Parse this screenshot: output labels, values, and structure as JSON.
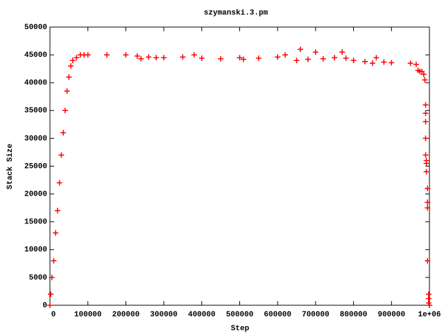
{
  "chart_data": {
    "type": "scatter",
    "title": "szymanski.3.pm",
    "x_label": "Step",
    "y_label": "Stack Size",
    "xlim": [
      0,
      1000000
    ],
    "ylim": [
      0,
      50000
    ],
    "xticks": [
      0,
      100000,
      200000,
      300000,
      400000,
      500000,
      600000,
      700000,
      800000,
      900000,
      {
        "value": 1000000,
        "label": "1e+06"
      }
    ],
    "yticks": [
      0,
      5000,
      10000,
      15000,
      20000,
      25000,
      30000,
      35000,
      40000,
      45000,
      50000
    ],
    "marker": "+",
    "series": [
      {
        "color": "#ff0000",
        "x": [
          0,
          2000,
          5000,
          10000,
          15000,
          20000,
          25000,
          30000,
          35000,
          40000,
          45000,
          50000,
          55000,
          60000,
          70000,
          80000,
          90000,
          100000,
          150000,
          200000,
          230000,
          240000,
          260000,
          280000,
          300000,
          350000,
          380000,
          400000,
          450000,
          500000,
          510000,
          550000,
          600000,
          620000,
          650000,
          660000,
          680000,
          700000,
          720000,
          750000,
          770000,
          780000,
          800000,
          830000,
          850000,
          860000,
          880000,
          900000,
          950000,
          965000,
          970000,
          975000,
          980000,
          985000,
          988000,
          990000,
          990000,
          990000,
          990000,
          990000,
          992000,
          992000,
          992000,
          995000,
          995000,
          995000,
          995000,
          998000,
          998000,
          998000,
          1000000
        ],
        "values": [
          0,
          2000,
          5000,
          8000,
          13000,
          17000,
          22000,
          27000,
          31000,
          35000,
          38500,
          41000,
          43000,
          44000,
          44500,
          45000,
          45000,
          45000,
          45000,
          45000,
          44800,
          44300,
          44600,
          44500,
          44500,
          44600,
          45000,
          44400,
          44300,
          44500,
          44200,
          44400,
          44600,
          45000,
          44000,
          46000,
          44200,
          45500,
          44300,
          44500,
          45500,
          44400,
          44000,
          43800,
          43500,
          44500,
          43700,
          43600,
          43500,
          43300,
          42200,
          42000,
          42000,
          41500,
          40500,
          36000,
          34500,
          33000,
          30000,
          27000,
          26000,
          25500,
          24000,
          21000,
          18500,
          17500,
          8000,
          2000,
          1200,
          400,
          0
        ]
      }
    ]
  }
}
